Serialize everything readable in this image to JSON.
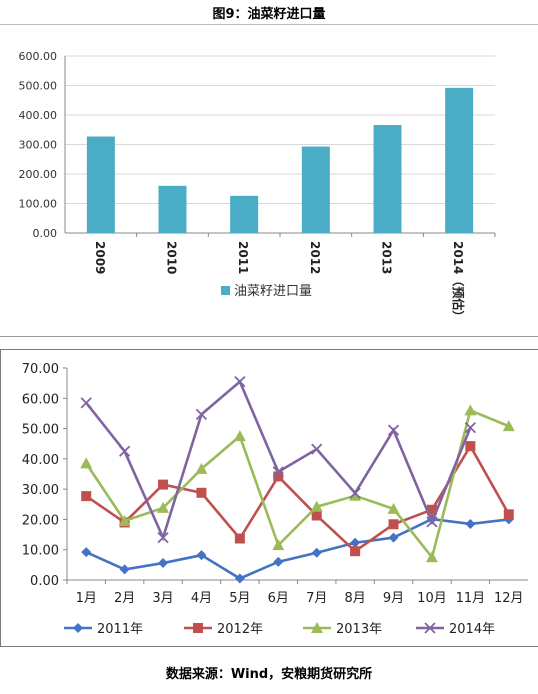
{
  "figure_title": "图9：油菜籽进口量",
  "source": "数据来源：Wind，安粮期货研究所",
  "chart_data": [
    {
      "type": "bar",
      "categories": [
        "2009",
        "2010",
        "2011",
        "2012",
        "2013",
        "2014（预估）"
      ],
      "series": [
        {
          "name": "油菜籽进口量",
          "color": "#4bacc6",
          "values": [
            327,
            160,
            126,
            293,
            366,
            492
          ]
        }
      ],
      "yticks": [
        "0.00",
        "100.00",
        "200.00",
        "300.00",
        "400.00",
        "500.00",
        "600.00"
      ],
      "ylim": [
        0,
        600
      ],
      "grid": true,
      "legend": "bottom"
    },
    {
      "type": "line",
      "categories": [
        "1月",
        "2月",
        "3月",
        "4月",
        "5月",
        "6月",
        "7月",
        "8月",
        "9月",
        "10月",
        "11月",
        "12月"
      ],
      "series": [
        {
          "name": "2011年",
          "color": "#4472c4",
          "marker": "diamond",
          "values": [
            9.2,
            3.5,
            5.6,
            8.2,
            0.5,
            6.0,
            9.0,
            12.3,
            14.0,
            20.1,
            18.5,
            20.0
          ]
        },
        {
          "name": "2012年",
          "color": "#c0504d",
          "marker": "square",
          "values": [
            27.7,
            19.0,
            31.5,
            28.8,
            13.7,
            34.2,
            21.3,
            9.5,
            18.4,
            23.2,
            44.2,
            21.7
          ]
        },
        {
          "name": "2013年",
          "color": "#9bbb59",
          "marker": "triangle",
          "values": [
            38.5,
            19.5,
            23.8,
            36.7,
            47.5,
            11.5,
            24.2,
            27.8,
            23.5,
            7.5,
            56.0,
            50.8
          ]
        },
        {
          "name": "2014年",
          "color": "#8064a2",
          "marker": "x",
          "values": [
            58.5,
            42.5,
            14.0,
            54.7,
            65.5,
            35.7,
            43.2,
            28.7,
            49.5,
            19.2,
            50.3,
            null
          ]
        }
      ],
      "yticks": [
        "0.00",
        "10.00",
        "20.00",
        "30.00",
        "40.00",
        "50.00",
        "60.00",
        "70.00"
      ],
      "ylim": [
        0,
        70
      ],
      "grid": false,
      "legend": "bottom"
    }
  ]
}
